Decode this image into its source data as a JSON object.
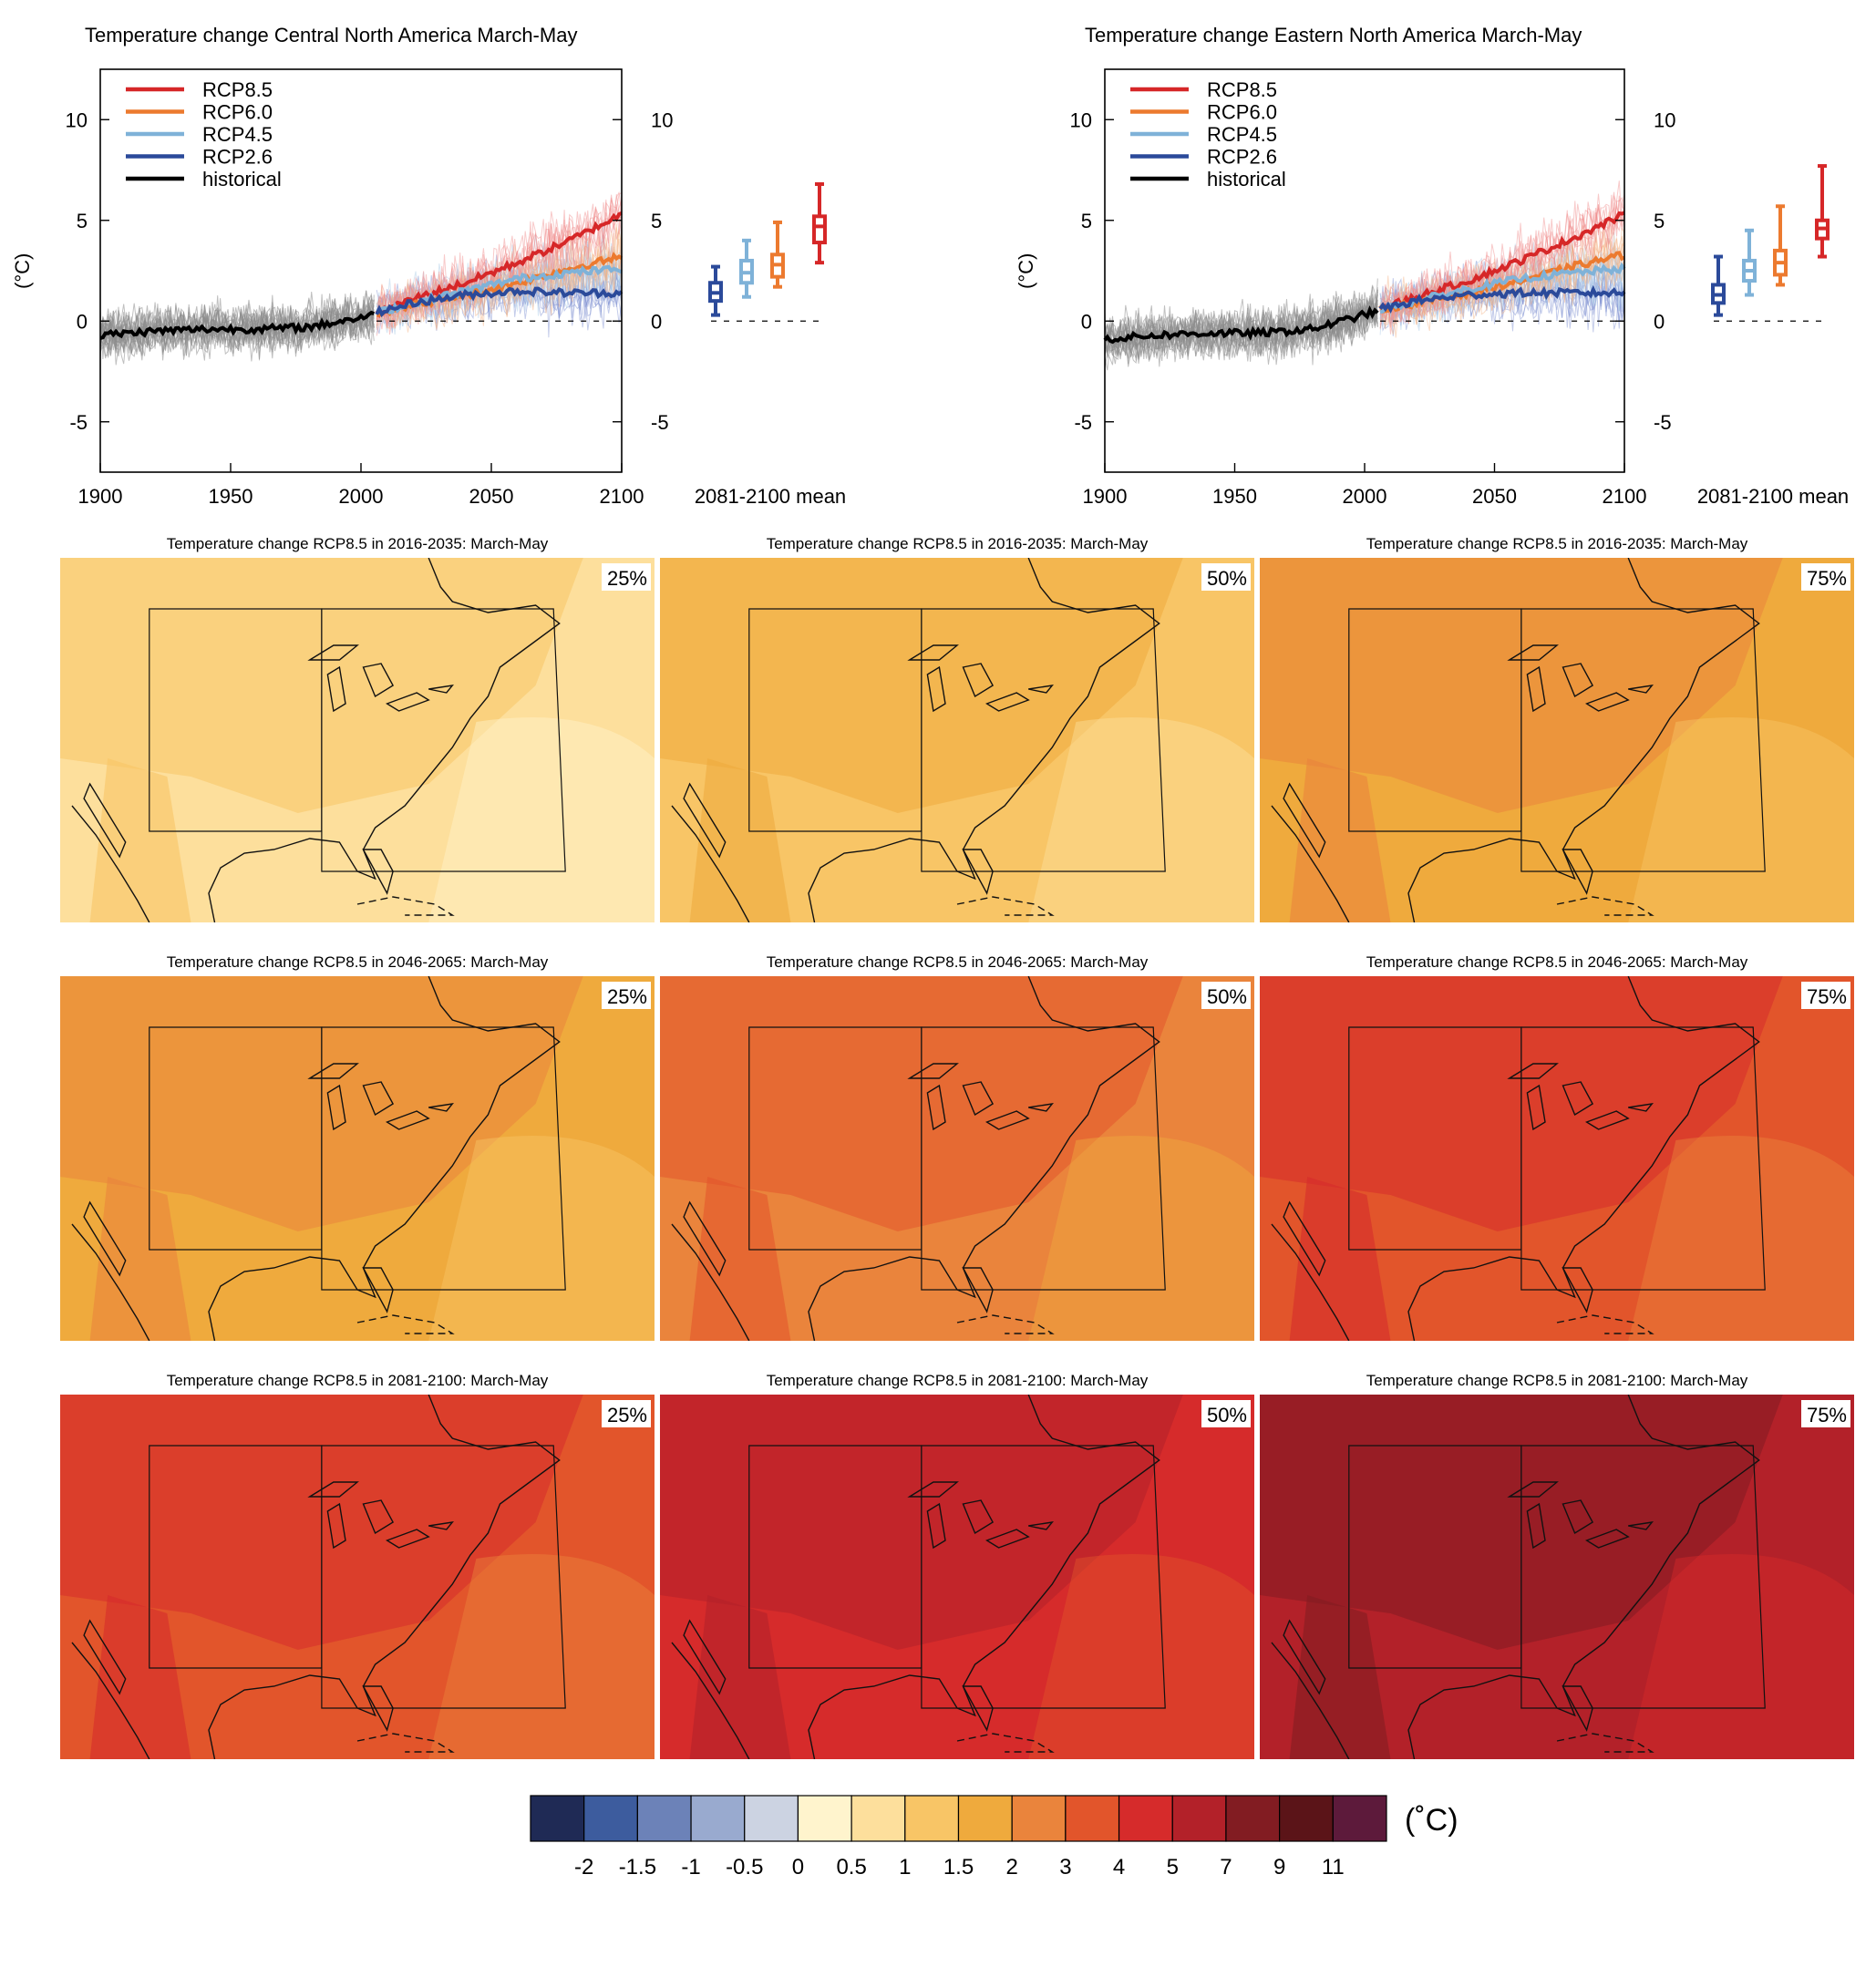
{
  "chart_data": [
    {
      "type": "line",
      "title": "Temperature change Central North America March-May",
      "ylabel": "(°C)",
      "xlim": [
        1900,
        2100
      ],
      "ylim": [
        -7.5,
        12.5
      ],
      "x_ticks": [
        "1900",
        "1950",
        "2000",
        "2050",
        "2100"
      ],
      "y_ticks": [
        "10",
        "5",
        "0",
        "-5"
      ],
      "legend_position": "top-left",
      "series": [
        {
          "name": "RCP8.5",
          "color": "#d62728",
          "x": [
            2006,
            2020,
            2040,
            2060,
            2080,
            2100
          ],
          "values": [
            0.4,
            1.1,
            1.9,
            2.9,
            4.0,
            5.3
          ]
        },
        {
          "name": "RCP6.0",
          "color": "#ec7a2f",
          "x": [
            2006,
            2020,
            2040,
            2060,
            2080,
            2100
          ],
          "values": [
            0.4,
            0.8,
            1.3,
            1.9,
            2.6,
            3.2
          ]
        },
        {
          "name": "RCP4.5",
          "color": "#7fb2d8",
          "x": [
            2006,
            2020,
            2040,
            2060,
            2080,
            2100
          ],
          "values": [
            0.4,
            0.9,
            1.5,
            2.1,
            2.4,
            2.6
          ]
        },
        {
          "name": "RCP2.6",
          "color": "#2b4a9a",
          "x": [
            2006,
            2020,
            2040,
            2060,
            2080,
            2100
          ],
          "values": [
            0.4,
            0.9,
            1.3,
            1.5,
            1.4,
            1.4
          ]
        },
        {
          "name": "historical",
          "color": "#000000",
          "x": [
            1900,
            1920,
            1940,
            1960,
            1980,
            2005
          ],
          "values": [
            -0.7,
            -0.5,
            -0.4,
            -0.4,
            -0.3,
            0.3
          ]
        }
      ],
      "boxplot": {
        "label": "2081-2100 mean",
        "y_ticks": [
          "10",
          "5",
          "0",
          "-5"
        ],
        "boxes": [
          {
            "scenario": "RCP2.6",
            "color": "#2b4a9a",
            "min": 0.3,
            "q1": 1.0,
            "median": 1.4,
            "q3": 1.9,
            "max": 2.7
          },
          {
            "scenario": "RCP4.5",
            "color": "#7fb2d8",
            "min": 1.2,
            "q1": 1.9,
            "median": 2.4,
            "q3": 3.0,
            "max": 4.0
          },
          {
            "scenario": "RCP6.0",
            "color": "#ec7a2f",
            "min": 1.7,
            "q1": 2.2,
            "median": 2.8,
            "q3": 3.3,
            "max": 4.9
          },
          {
            "scenario": "RCP8.5",
            "color": "#d62728",
            "min": 2.9,
            "q1": 3.9,
            "median": 4.7,
            "q3": 5.2,
            "max": 6.8
          }
        ]
      }
    },
    {
      "type": "line",
      "title": "Temperature change Eastern North America March-May",
      "ylabel": "(°C)",
      "xlim": [
        1900,
        2100
      ],
      "ylim": [
        -7.5,
        12.5
      ],
      "x_ticks": [
        "1900",
        "1950",
        "2000",
        "2050",
        "2100"
      ],
      "y_ticks": [
        "10",
        "5",
        "0",
        "-5"
      ],
      "legend_position": "top-left",
      "series": [
        {
          "name": "RCP8.5",
          "color": "#d62728",
          "x": [
            2006,
            2020,
            2040,
            2060,
            2080,
            2100
          ],
          "values": [
            0.6,
            1.2,
            2.0,
            3.0,
            4.1,
            5.3
          ]
        },
        {
          "name": "RCP6.0",
          "color": "#ec7a2f",
          "x": [
            2006,
            2020,
            2040,
            2060,
            2080,
            2100
          ],
          "values": [
            0.6,
            0.9,
            1.4,
            2.0,
            2.7,
            3.3
          ]
        },
        {
          "name": "RCP4.5",
          "color": "#7fb2d8",
          "x": [
            2006,
            2020,
            2040,
            2060,
            2080,
            2100
          ],
          "values": [
            0.6,
            1.0,
            1.6,
            2.1,
            2.4,
            2.6
          ]
        },
        {
          "name": "RCP2.6",
          "color": "#2b4a9a",
          "x": [
            2006,
            2020,
            2040,
            2060,
            2080,
            2100
          ],
          "values": [
            0.6,
            1.0,
            1.3,
            1.4,
            1.4,
            1.4
          ]
        },
        {
          "name": "historical",
          "color": "#000000",
          "x": [
            1900,
            1920,
            1940,
            1960,
            1980,
            2005
          ],
          "values": [
            -0.9,
            -0.7,
            -0.6,
            -0.6,
            -0.4,
            0.5
          ]
        }
      ],
      "boxplot": {
        "label": "2081-2100 mean",
        "y_ticks": [
          "10",
          "5",
          "0",
          "-5"
        ],
        "boxes": [
          {
            "scenario": "RCP2.6",
            "color": "#2b4a9a",
            "min": 0.3,
            "q1": 0.9,
            "median": 1.3,
            "q3": 1.8,
            "max": 3.2
          },
          {
            "scenario": "RCP4.5",
            "color": "#7fb2d8",
            "min": 1.3,
            "q1": 2.0,
            "median": 2.5,
            "q3": 3.0,
            "max": 4.5
          },
          {
            "scenario": "RCP6.0",
            "color": "#ec7a2f",
            "min": 1.8,
            "q1": 2.3,
            "median": 2.9,
            "q3": 3.5,
            "max": 5.7
          },
          {
            "scenario": "RCP8.5",
            "color": "#d62728",
            "min": 3.2,
            "q1": 4.1,
            "median": 4.6,
            "q3": 5.0,
            "max": 7.7
          }
        ]
      }
    },
    {
      "type": "heatmap",
      "panels": [
        {
          "title": "Temperature change RCP8.5 in 2016-2035: March-May",
          "percentile": "25%",
          "base_level": 0.5
        },
        {
          "title": "Temperature change RCP8.5 in 2016-2035: March-May",
          "percentile": "50%",
          "base_level": 1
        },
        {
          "title": "Temperature change RCP8.5 in 2016-2035: March-May",
          "percentile": "75%",
          "base_level": 1.5
        },
        {
          "title": "Temperature change RCP8.5 in 2046-2065: March-May",
          "percentile": "25%",
          "base_level": 1.5
        },
        {
          "title": "Temperature change RCP8.5 in 2046-2065: March-May",
          "percentile": "50%",
          "base_level": 2
        },
        {
          "title": "Temperature change RCP8.5 in 2046-2065: March-May",
          "percentile": "75%",
          "base_level": 3
        },
        {
          "title": "Temperature change RCP8.5 in 2081-2100: March-May",
          "percentile": "25%",
          "base_level": 3
        },
        {
          "title": "Temperature change RCP8.5 in 2081-2100: March-May",
          "percentile": "50%",
          "base_level": 4
        },
        {
          "title": "Temperature change RCP8.5 in 2081-2100: March-May",
          "percentile": "75%",
          "base_level": 5
        }
      ],
      "colorbar": {
        "unit": "(˚C)",
        "levels": [
          "-2",
          "-1.5",
          "-1",
          "-0.5",
          "0",
          "0.5",
          "1",
          "1.5",
          "2",
          "3",
          "4",
          "5",
          "7",
          "9",
          "11"
        ],
        "colors": [
          "#1f2a55",
          "#3d5c9e",
          "#6c82b8",
          "#99aacf",
          "#ccd3e2",
          "#fff4cd",
          "#fddf9c",
          "#f8c566",
          "#efaa3d",
          "#ea843c",
          "#e2552b",
          "#d62b2b",
          "#b32129",
          "#821c22",
          "#5b1418",
          "#5d1a3b"
        ]
      }
    }
  ]
}
